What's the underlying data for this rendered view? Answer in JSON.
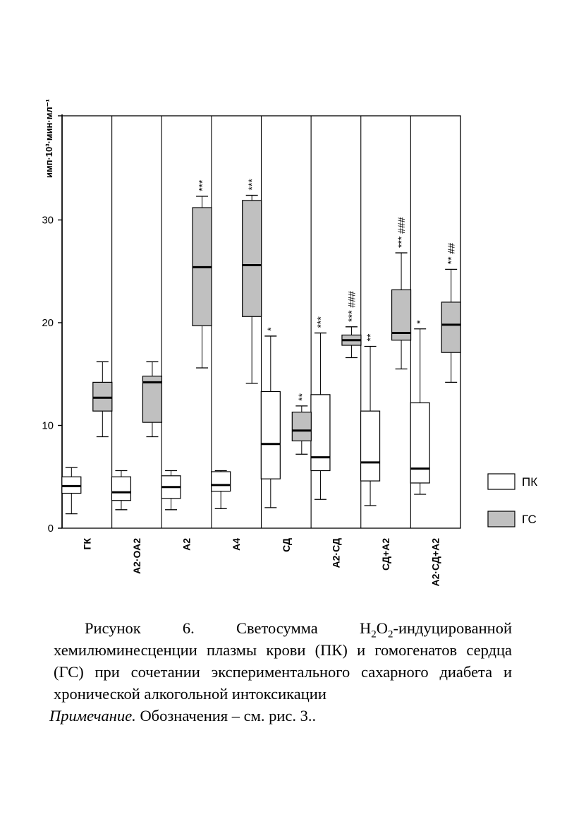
{
  "chart_data": {
    "type": "box",
    "ylabel": "имп·10³·мин·мл⁻¹",
    "ylim": [
      0,
      40
    ],
    "yticks": [
      0,
      10,
      20,
      30
    ],
    "ytick_labels": [
      "0",
      "10",
      "20",
      "30"
    ],
    "categories": [
      "ГК",
      "А2·ОА2",
      "А2",
      "А4",
      "СД",
      "А2·СД",
      "СД+А2",
      "А2·СД+А2"
    ],
    "series": [
      {
        "name": "ПК",
        "color": "#ffffff",
        "boxes": [
          {
            "min": 1.4,
            "q1": 3.4,
            "median": 4.1,
            "q3": 5.0,
            "max": 5.9,
            "label": ""
          },
          {
            "min": 1.8,
            "q1": 2.7,
            "median": 3.5,
            "q3": 5.0,
            "max": 5.6,
            "label": ""
          },
          {
            "min": 1.8,
            "q1": 2.9,
            "median": 4.0,
            "q3": 5.1,
            "max": 5.6,
            "label": ""
          },
          {
            "min": 1.9,
            "q1": 3.6,
            "median": 4.2,
            "q3": 5.5,
            "max": 5.6,
            "label": ""
          },
          {
            "min": 2.0,
            "q1": 4.8,
            "median": 8.2,
            "q3": 13.3,
            "max": 18.7,
            "label": "*"
          },
          {
            "min": 2.8,
            "q1": 5.6,
            "median": 6.9,
            "q3": 13.0,
            "max": 19.0,
            "label": "***"
          },
          {
            "min": 2.2,
            "q1": 4.6,
            "median": 6.4,
            "q3": 11.4,
            "max": 17.7,
            "label": "**"
          },
          {
            "min": 3.3,
            "q1": 4.4,
            "median": 5.8,
            "q3": 12.2,
            "max": 19.4,
            "label": "*"
          }
        ]
      },
      {
        "name": "ГС",
        "color": "#c0c0c0",
        "boxes": [
          {
            "min": 8.9,
            "q1": 11.4,
            "median": 12.7,
            "q3": 14.2,
            "max": 16.2,
            "label": ""
          },
          {
            "min": 8.9,
            "q1": 10.3,
            "median": 14.2,
            "q3": 14.8,
            "max": 16.2,
            "label": ""
          },
          {
            "min": 15.6,
            "q1": 19.7,
            "median": 25.4,
            "q3": 31.2,
            "max": 32.3,
            "label": "***"
          },
          {
            "min": 14.1,
            "q1": 20.6,
            "median": 25.6,
            "q3": 31.9,
            "max": 32.4,
            "label": "***"
          },
          {
            "min": 7.2,
            "q1": 8.5,
            "median": 9.5,
            "q3": 11.3,
            "max": 11.9,
            "label": "**"
          },
          {
            "min": 16.6,
            "q1": 17.8,
            "median": 18.3,
            "q3": 18.8,
            "max": 19.6,
            "label": "*** ###"
          },
          {
            "min": 15.5,
            "q1": 18.3,
            "median": 19.0,
            "q3": 23.2,
            "max": 26.8,
            "label": "*** ###"
          },
          {
            "min": 14.2,
            "q1": 17.1,
            "median": 19.8,
            "q3": 22.0,
            "max": 25.2,
            "label": "** ##"
          }
        ]
      }
    ],
    "legend": [
      {
        "name": "ПК",
        "color": "#ffffff"
      },
      {
        "name": "ГС",
        "color": "#c0c0c0"
      }
    ],
    "legend_position": "right"
  },
  "caption": {
    "fig_prefix": "Рисунок 6. Светосумма H",
    "sub1": "2",
    "mid1": "O",
    "sub2": "2",
    "fig_rest": "-индуцированной хемилюминесценции плазмы крови (ПК) и гомогенатов сердца (ГС) при сочетании экспериментального сахарного диабета и хронической алкогольной интоксикации",
    "note_label": "Примечание.",
    "note_text": " Обозначения – см.  рис. 3.."
  }
}
